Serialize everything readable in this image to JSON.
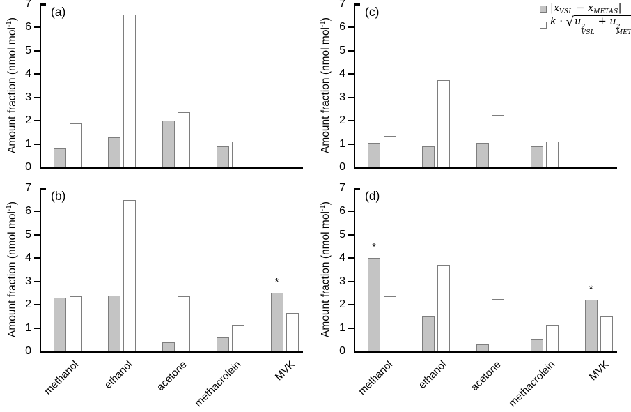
{
  "figure": {
    "y_axis_title": {
      "main": "Amount fraction (nmol mol",
      "sup": "-1",
      "close": ")"
    }
  },
  "legend": {
    "series1": {
      "open": "|",
      "x1": "x",
      "sub1": "VSL",
      "minus": " − ",
      "x2": "x",
      "sub2": "METAS",
      "close": "|"
    },
    "series2": {
      "k": "k",
      "dot": " · ",
      "radical": "√",
      "u1": "u",
      "sup1": "2",
      "subA": "VSL",
      "plus": " + ",
      "u2": "u",
      "sup2": "2",
      "subB": "METAS"
    }
  },
  "chart_data": {
    "type": "bar",
    "categories": [
      "methanol",
      "ethanol",
      "acetone",
      "methacrolein",
      "MVK"
    ],
    "ylabel": "Amount fraction (nmol mol-1)",
    "ylim": [
      0,
      7
    ],
    "yticks": [
      0,
      1,
      2,
      3,
      4,
      5,
      6,
      7
    ],
    "grid": false,
    "legend_position": "top-right",
    "legend_entries": [
      "|x_VSL − x_METAS|",
      "k·√(u²_VSL + u²_METAS)"
    ],
    "colors": {
      "series1_fill": "#c4c4c4",
      "series2_fill": "#ffffff",
      "bar_border": "#7e7e7e",
      "axis": "#000000"
    },
    "panels": [
      {
        "panel": "a",
        "label": "(a)",
        "show_x_labels": false,
        "asterisk_categories": [],
        "series": [
          {
            "name": "|x_VSL − x_METAS|",
            "values": [
              0.8,
              1.3,
              2.0,
              0.9,
              null
            ]
          },
          {
            "name": "k·√(u²_VSL + u²_METAS)",
            "values": [
              1.9,
              6.55,
              2.35,
              1.1,
              null
            ]
          }
        ]
      },
      {
        "panel": "b",
        "label": "(b)",
        "show_x_labels": true,
        "asterisk_categories": [
          "MVK"
        ],
        "series": [
          {
            "name": "|x_VSL − x_METAS|",
            "values": [
              2.3,
              2.4,
              0.4,
              0.6,
              2.5
            ]
          },
          {
            "name": "k·√(u²_VSL + u²_METAS)",
            "values": [
              2.35,
              6.5,
              2.35,
              1.15,
              1.65
            ]
          }
        ]
      },
      {
        "panel": "c",
        "label": "(c)",
        "show_x_labels": false,
        "asterisk_categories": [],
        "series": [
          {
            "name": "|x_VSL − x_METAS|",
            "values": [
              1.05,
              0.9,
              1.05,
              0.9,
              null
            ]
          },
          {
            "name": "k·√(u²_VSL + u²_METAS)",
            "values": [
              1.35,
              3.75,
              2.25,
              1.1,
              null
            ]
          }
        ]
      },
      {
        "panel": "d",
        "label": "(d)",
        "show_x_labels": true,
        "asterisk_categories": [
          "methanol",
          "MVK"
        ],
        "series": [
          {
            "name": "|x_VSL − x_METAS|",
            "values": [
              4.0,
              1.5,
              0.3,
              0.5,
              2.2
            ]
          },
          {
            "name": "k·√(u²_VSL + u²_METAS)",
            "values": [
              2.35,
              3.7,
              2.25,
              1.15,
              1.5
            ]
          }
        ]
      }
    ]
  }
}
